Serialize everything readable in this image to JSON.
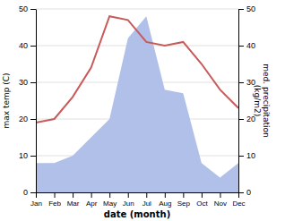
{
  "chart_data": {
    "type": "line",
    "categories": [
      "Jan",
      "Feb",
      "Mar",
      "Apr",
      "May",
      "Jun",
      "Jul",
      "Aug",
      "Sep",
      "Oct",
      "Nov",
      "Dec"
    ],
    "series": [
      {
        "type": "area",
        "axis": "y2",
        "color": "#b0c0e8",
        "values": [
          8,
          8,
          10,
          15,
          20,
          42,
          48,
          28,
          27,
          8,
          4,
          8
        ]
      },
      {
        "type": "line",
        "color": "#c85a5a",
        "values": [
          19,
          20,
          26,
          34,
          48,
          47,
          41,
          40,
          41,
          35,
          28,
          23
        ]
      }
    ],
    "xlabel": "date (month)",
    "ylabel": "max temp (C)",
    "y2label": "med. precipitation\n(kg/m2)",
    "ylim": [
      0,
      50
    ],
    "yticks": [
      0,
      10,
      20,
      30,
      40,
      50
    ],
    "y2lim": [
      0,
      50
    ],
    "y2ticks": [
      0,
      10,
      20,
      30,
      40,
      50
    ],
    "grid": true
  }
}
